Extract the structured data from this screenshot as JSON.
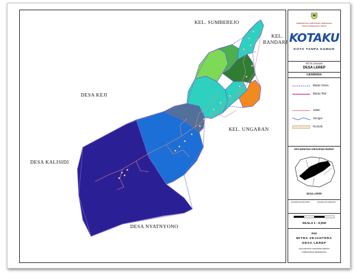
{
  "places": {
    "kel_sumberejo": "KEL. SUMBEREJO",
    "kel_bandarjo": "KEL.\nBANDARJO",
    "desa_keji": "DESA KEJI",
    "kel_ungaran": "KEL. UNGARAN",
    "desa_kalisidi": "DESA KALISIDI",
    "desa_nyatnyono": "DESA NYATNYONO"
  },
  "panel": {
    "org_line_1": "PEMERINTAH KABUPATEN SEMARANG",
    "org_line_2": "DINAS PEKERJAAN UMUM",
    "logo_text": "KOTAKU",
    "logo_subtitle": "KOTA TANPA KUMUH",
    "map_title_1": "PETA DASAR",
    "map_title_2": "DESA LEREP",
    "legend_title": "LEGENDA",
    "legend": [
      {
        "label": "Batas Desa",
        "color": "#7a6fd0",
        "style": "dashed"
      },
      {
        "label": "Batas RW",
        "color": "#c2227a",
        "style": "solid"
      },
      {
        "label": "Jalan",
        "color": "#d98a8a",
        "style": "solid"
      },
      {
        "label": "Sungai",
        "color": "#5a6ad6",
        "style": "wavy"
      },
      {
        "label": "Rumah",
        "color": "#f3e6c8",
        "style": "box"
      }
    ],
    "inset_title": "KECAMATAN UNGARAN BARAT",
    "inset_label": "DESA LEREP",
    "info_left": "KOORDINATOR BKM",
    "info_right": "SISTEM KOORDINAT",
    "scale_text": "SKALA 1 : 5,000",
    "bottom_1": "BKM",
    "bottom_2": "MITRA SEJAHTERA",
    "bottom_2b": "DESA LEREP",
    "bottom_3": "KECAMATAN UNGARAN BARAT",
    "bottom_4": "KABUPATEN SEMARANG"
  },
  "colors": {
    "rw_dark_navy": "#2b1f95",
    "rw_blue": "#1c6fd6",
    "rw_slate": "#51709a",
    "rw_teal": "#2ed1c0",
    "rw_green_light": "#7ed957",
    "rw_green_dark": "#2e7d32",
    "rw_orange": "#f28a1f",
    "rw_dark_green_2": "#2f6b3a"
  }
}
